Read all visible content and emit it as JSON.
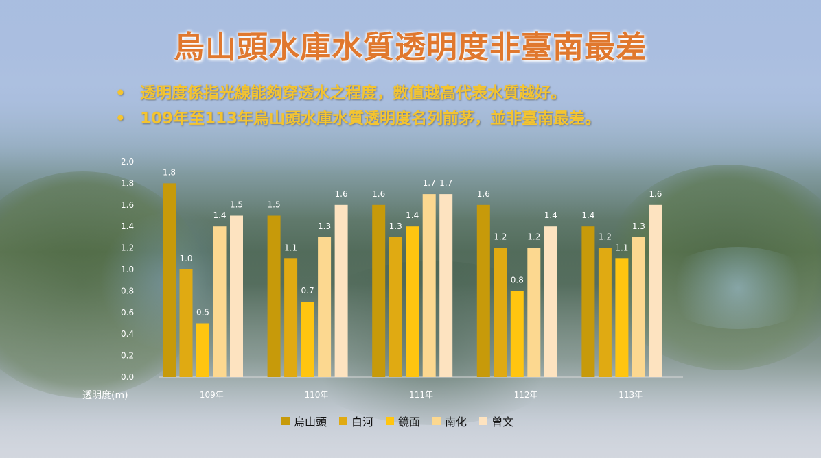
{
  "title": "烏山頭水庫水質透明度非臺南最差",
  "bullets": [
    "透明度係指光線能夠穿透水之程度，數值越高代表水質越好。",
    "109年至113年烏山頭水庫水質透明度名列前茅，並非臺南最差。"
  ],
  "bullet_marker": "•",
  "colors": {
    "title": "#e0782e",
    "bullet_text": "#f4c430",
    "axis_text": "#ffffff"
  },
  "chart_data": {
    "type": "bar",
    "categories": [
      "109年",
      "110年",
      "111年",
      "112年",
      "113年"
    ],
    "ylabel": "透明度(m)",
    "ylim": [
      0,
      2.0
    ],
    "yticks": [
      "0.0",
      "0.2",
      "0.4",
      "0.6",
      "0.8",
      "1.0",
      "1.2",
      "1.4",
      "1.6",
      "1.8",
      "2.0"
    ],
    "legend_position": "bottom",
    "series": [
      {
        "name": "烏山頭",
        "color": "#c79a0a",
        "values": [
          1.8,
          1.5,
          1.6,
          1.6,
          1.4
        ],
        "labels": [
          "1.8",
          "1.5",
          "1.6",
          "1.6",
          "1.4"
        ]
      },
      {
        "name": "白河",
        "color": "#e0aa12",
        "values": [
          1.0,
          1.1,
          1.3,
          1.2,
          1.2
        ],
        "labels": [
          "1.0",
          "1.1",
          "1.3",
          "1.2",
          "1.2"
        ]
      },
      {
        "name": "鏡面",
        "color": "#ffc510",
        "values": [
          0.5,
          0.7,
          1.4,
          0.8,
          1.1
        ],
        "labels": [
          "0.5",
          "0.7",
          "1.4",
          "0.8",
          "1.1"
        ]
      },
      {
        "name": "南化",
        "color": "#fcd890",
        "values": [
          1.4,
          1.3,
          1.7,
          1.2,
          1.3
        ],
        "labels": [
          "1.4",
          "1.3",
          "1.7",
          "1.2",
          "1.3"
        ]
      },
      {
        "name": "曾文",
        "color": "#fde3c0",
        "values": [
          1.5,
          1.6,
          1.7,
          1.4,
          1.6
        ],
        "labels": [
          "1.5",
          "1.6",
          "1.7",
          "1.4",
          "1.6"
        ]
      }
    ]
  }
}
